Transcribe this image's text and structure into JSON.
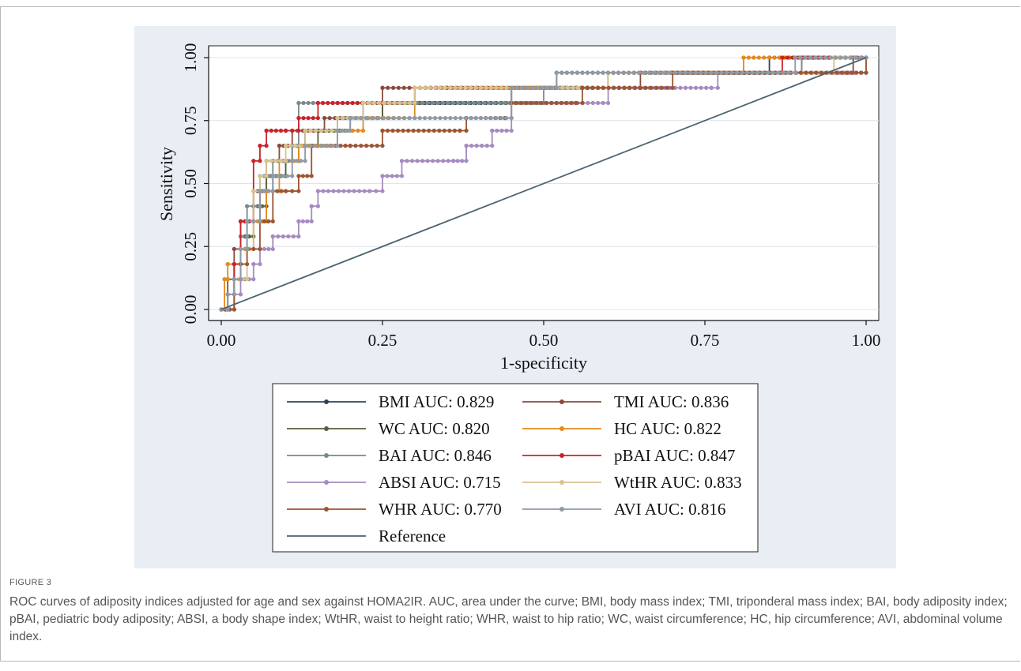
{
  "figure_label": "FIGURE 3",
  "caption": "ROC curves of adiposity indices adjusted for age and sex against HOMA2IR. AUC, area under the curve; BMI, body mass index; TMI, triponderal mass index; BAI, body adiposity index; pBAI, pediatric body adiposity; ABSI, a body shape index; WtHR, waist to height ratio; WHR, waist to hip ratio; WC, waist circumference; HC, hip circumference; AVI, abdominal volume index.",
  "chart_data": {
    "type": "line",
    "title": "",
    "xlabel": "1-specificity",
    "ylabel": "Sensitivity",
    "xlim": [
      0,
      1
    ],
    "ylim": [
      0,
      1
    ],
    "xticks": [
      "0.00",
      "0.25",
      "0.50",
      "0.75",
      "1.00"
    ],
    "yticks": [
      "0.00",
      "0.25",
      "0.50",
      "0.75",
      "1.00"
    ],
    "legend_position": "bottom",
    "series": [
      {
        "name": "BMI AUC: 0.829",
        "color": "#2f4257",
        "markers": true,
        "points": [
          [
            0,
            0
          ],
          [
            0.01,
            0.06
          ],
          [
            0.02,
            0.12
          ],
          [
            0.03,
            0.24
          ],
          [
            0.04,
            0.35
          ],
          [
            0.06,
            0.47
          ],
          [
            0.08,
            0.53
          ],
          [
            0.1,
            0.59
          ],
          [
            0.11,
            0.65
          ],
          [
            0.13,
            0.71
          ],
          [
            0.18,
            0.76
          ],
          [
            0.22,
            0.82
          ],
          [
            0.3,
            0.82
          ],
          [
            0.45,
            0.88
          ],
          [
            0.52,
            0.94
          ],
          [
            0.8,
            0.94
          ],
          [
            0.85,
            1
          ],
          [
            1,
            1
          ]
        ]
      },
      {
        "name": "TMI AUC: 0.836",
        "color": "#8b4a3c",
        "markers": true,
        "points": [
          [
            0,
            0
          ],
          [
            0.01,
            0.12
          ],
          [
            0.02,
            0.24
          ],
          [
            0.03,
            0.35
          ],
          [
            0.05,
            0.47
          ],
          [
            0.07,
            0.59
          ],
          [
            0.09,
            0.65
          ],
          [
            0.11,
            0.71
          ],
          [
            0.16,
            0.76
          ],
          [
            0.25,
            0.88
          ],
          [
            0.35,
            0.88
          ],
          [
            0.55,
            0.88
          ],
          [
            0.65,
            0.94
          ],
          [
            0.9,
            0.94
          ],
          [
            0.98,
            1
          ],
          [
            1,
            1
          ]
        ]
      },
      {
        "name": "WC AUC: 0.820",
        "color": "#55613c",
        "markers": true,
        "points": [
          [
            0,
            0
          ],
          [
            0.01,
            0.06
          ],
          [
            0.02,
            0.18
          ],
          [
            0.03,
            0.29
          ],
          [
            0.05,
            0.41
          ],
          [
            0.07,
            0.53
          ],
          [
            0.1,
            0.59
          ],
          [
            0.12,
            0.65
          ],
          [
            0.15,
            0.71
          ],
          [
            0.2,
            0.76
          ],
          [
            0.25,
            0.82
          ],
          [
            0.4,
            0.82
          ],
          [
            0.45,
            0.88
          ],
          [
            0.6,
            0.94
          ],
          [
            0.85,
            0.94
          ],
          [
            0.9,
            1
          ],
          [
            1,
            1
          ]
        ]
      },
      {
        "name": "HC AUC: 0.822",
        "color": "#e48a1e",
        "markers": true,
        "points": [
          [
            0,
            0
          ],
          [
            0.005,
            0.12
          ],
          [
            0.01,
            0.18
          ],
          [
            0.03,
            0.24
          ],
          [
            0.05,
            0.35
          ],
          [
            0.07,
            0.47
          ],
          [
            0.09,
            0.59
          ],
          [
            0.12,
            0.65
          ],
          [
            0.18,
            0.71
          ],
          [
            0.22,
            0.76
          ],
          [
            0.3,
            0.88
          ],
          [
            0.42,
            0.88
          ],
          [
            0.5,
            0.88
          ],
          [
            0.6,
            0.94
          ],
          [
            0.8,
            0.94
          ],
          [
            0.81,
            1
          ],
          [
            1,
            1
          ]
        ]
      },
      {
        "name": "BAI AUC: 0.846",
        "color": "#7a8a8c",
        "markers": true,
        "points": [
          [
            0,
            0
          ],
          [
            0.01,
            0.06
          ],
          [
            0.02,
            0.18
          ],
          [
            0.03,
            0.29
          ],
          [
            0.04,
            0.41
          ],
          [
            0.06,
            0.53
          ],
          [
            0.08,
            0.59
          ],
          [
            0.11,
            0.65
          ],
          [
            0.12,
            0.82
          ],
          [
            0.18,
            0.82
          ],
          [
            0.28,
            0.82
          ],
          [
            0.44,
            0.82
          ],
          [
            0.5,
            0.88
          ],
          [
            0.6,
            0.94
          ],
          [
            0.85,
            0.94
          ],
          [
            0.9,
            1
          ],
          [
            1,
            1
          ]
        ]
      },
      {
        "name": "pBAI AUC: 0.847",
        "color": "#c8242a",
        "markers": true,
        "points": [
          [
            0,
            0
          ],
          [
            0.01,
            0.0
          ],
          [
            0.02,
            0.18
          ],
          [
            0.03,
            0.35
          ],
          [
            0.05,
            0.59
          ],
          [
            0.06,
            0.65
          ],
          [
            0.07,
            0.71
          ],
          [
            0.1,
            0.71
          ],
          [
            0.12,
            0.76
          ],
          [
            0.15,
            0.82
          ],
          [
            0.25,
            0.82
          ],
          [
            0.3,
            0.88
          ],
          [
            0.45,
            0.88
          ],
          [
            0.6,
            0.94
          ],
          [
            0.86,
            0.94
          ],
          [
            0.87,
            1
          ],
          [
            1,
            1
          ]
        ]
      },
      {
        "name": "ABSI AUC: 0.715",
        "color": "#a58bc0",
        "markers": true,
        "points": [
          [
            0,
            0
          ],
          [
            0.02,
            0.06
          ],
          [
            0.03,
            0.12
          ],
          [
            0.05,
            0.18
          ],
          [
            0.06,
            0.24
          ],
          [
            0.08,
            0.29
          ],
          [
            0.12,
            0.35
          ],
          [
            0.14,
            0.41
          ],
          [
            0.15,
            0.47
          ],
          [
            0.23,
            0.47
          ],
          [
            0.25,
            0.53
          ],
          [
            0.28,
            0.59
          ],
          [
            0.36,
            0.59
          ],
          [
            0.38,
            0.65
          ],
          [
            0.42,
            0.71
          ],
          [
            0.45,
            0.82
          ],
          [
            0.6,
            0.88
          ],
          [
            0.76,
            0.88
          ],
          [
            0.77,
            0.94
          ],
          [
            0.95,
            0.94
          ],
          [
            1,
            1
          ]
        ]
      },
      {
        "name": "WtHR AUC: 0.833",
        "color": "#d8c290",
        "markers": true,
        "points": [
          [
            0,
            0
          ],
          [
            0.01,
            0.06
          ],
          [
            0.02,
            0.12
          ],
          [
            0.04,
            0.24
          ],
          [
            0.05,
            0.47
          ],
          [
            0.06,
            0.53
          ],
          [
            0.07,
            0.59
          ],
          [
            0.1,
            0.65
          ],
          [
            0.13,
            0.71
          ],
          [
            0.18,
            0.76
          ],
          [
            0.22,
            0.82
          ],
          [
            0.3,
            0.88
          ],
          [
            0.45,
            0.88
          ],
          [
            0.6,
            0.94
          ],
          [
            0.9,
            0.94
          ],
          [
            0.95,
            1
          ],
          [
            1,
            1
          ]
        ]
      },
      {
        "name": "WHR AUC: 0.770",
        "color": "#9c5532",
        "markers": true,
        "points": [
          [
            0,
            0
          ],
          [
            0.02,
            0.12
          ],
          [
            0.03,
            0.18
          ],
          [
            0.04,
            0.24
          ],
          [
            0.06,
            0.35
          ],
          [
            0.08,
            0.47
          ],
          [
            0.1,
            0.47
          ],
          [
            0.12,
            0.53
          ],
          [
            0.14,
            0.65
          ],
          [
            0.2,
            0.65
          ],
          [
            0.25,
            0.71
          ],
          [
            0.37,
            0.71
          ],
          [
            0.38,
            0.76
          ],
          [
            0.44,
            0.76
          ],
          [
            0.45,
            0.82
          ],
          [
            0.55,
            0.82
          ],
          [
            0.56,
            0.88
          ],
          [
            0.65,
            0.88
          ],
          [
            0.7,
            0.94
          ],
          [
            0.97,
            0.94
          ],
          [
            1,
            1
          ]
        ]
      },
      {
        "name": "AVI AUC: 0.816",
        "color": "#8e9aa6",
        "markers": true,
        "points": [
          [
            0,
            0
          ],
          [
            0.01,
            0.06
          ],
          [
            0.02,
            0.12
          ],
          [
            0.03,
            0.24
          ],
          [
            0.04,
            0.35
          ],
          [
            0.06,
            0.47
          ],
          [
            0.08,
            0.53
          ],
          [
            0.11,
            0.59
          ],
          [
            0.13,
            0.65
          ],
          [
            0.18,
            0.71
          ],
          [
            0.2,
            0.76
          ],
          [
            0.3,
            0.76
          ],
          [
            0.45,
            0.88
          ],
          [
            0.52,
            0.94
          ],
          [
            0.88,
            0.94
          ],
          [
            0.89,
            1
          ],
          [
            1,
            1
          ]
        ]
      },
      {
        "name": "Reference",
        "color": "#4a6470",
        "markers": false,
        "points": [
          [
            0,
            0
          ],
          [
            1,
            1
          ]
        ]
      }
    ]
  }
}
